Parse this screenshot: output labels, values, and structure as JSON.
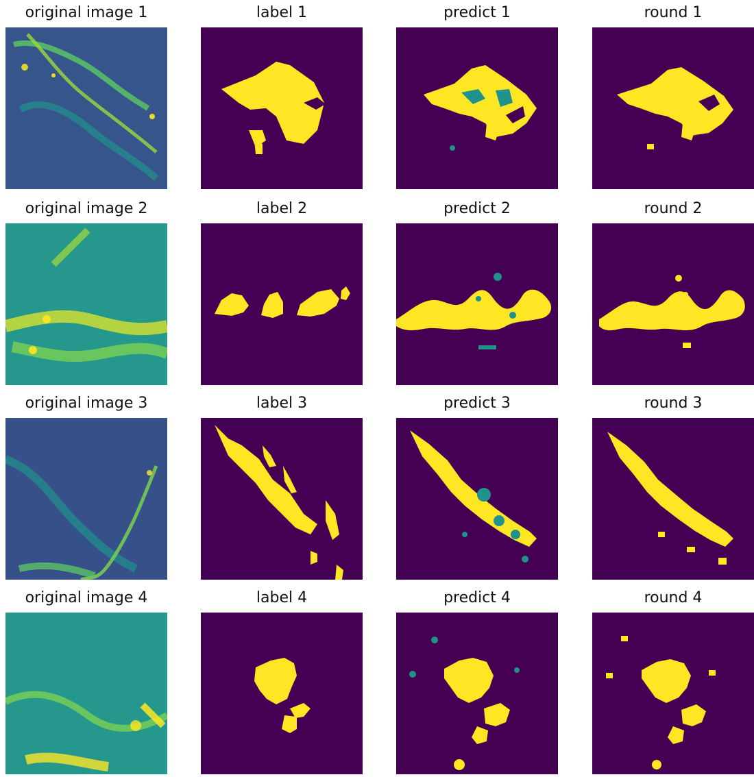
{
  "colors": {
    "background": "#ffffff",
    "mask_background": "#440154",
    "mask_foreground": "#fde725",
    "mid_green": "#21918c",
    "teal_blue": "#3b528b",
    "light_green": "#5ec962"
  },
  "panels": [
    {
      "title": "original image 1",
      "type": "original"
    },
    {
      "title": "label 1",
      "type": "label"
    },
    {
      "title": "predict 1",
      "type": "predict"
    },
    {
      "title": "round 1",
      "type": "round"
    },
    {
      "title": "original image 2",
      "type": "original"
    },
    {
      "title": "label 2",
      "type": "label"
    },
    {
      "title": "predict 2",
      "type": "predict"
    },
    {
      "title": "round 2",
      "type": "round"
    },
    {
      "title": "original image 3",
      "type": "original"
    },
    {
      "title": "label 3",
      "type": "label"
    },
    {
      "title": "predict 3",
      "type": "predict"
    },
    {
      "title": "round 3",
      "type": "round"
    },
    {
      "title": "original image 4",
      "type": "original"
    },
    {
      "title": "label 4",
      "type": "label"
    },
    {
      "title": "predict 4",
      "type": "predict"
    },
    {
      "title": "round 4",
      "type": "round"
    }
  ]
}
